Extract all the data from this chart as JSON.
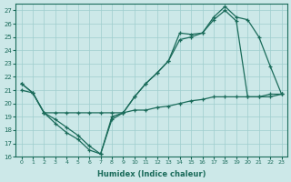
{
  "xlabel": "Humidex (Indice chaleur)",
  "bg_color": "#cce8e8",
  "grid_color": "#9fcece",
  "line_color": "#1a6b5a",
  "xlim": [
    -0.5,
    23.5
  ],
  "ylim": [
    16,
    27.5
  ],
  "xticks": [
    0,
    1,
    2,
    3,
    4,
    5,
    6,
    7,
    8,
    9,
    10,
    11,
    12,
    13,
    14,
    15,
    16,
    17,
    18,
    19,
    20,
    21,
    22,
    23
  ],
  "yticks": [
    16,
    17,
    18,
    19,
    20,
    21,
    22,
    23,
    24,
    25,
    26,
    27
  ],
  "line1_x": [
    0,
    1,
    2,
    3,
    4,
    5,
    6,
    7,
    8,
    9,
    10,
    11,
    12,
    13,
    14,
    15,
    16,
    17,
    18,
    19,
    20,
    21,
    22,
    23
  ],
  "line1_y": [
    21.5,
    20.8,
    19.3,
    18.8,
    18.2,
    17.6,
    16.8,
    16.2,
    19.0,
    19.3,
    20.5,
    21.5,
    22.3,
    23.2,
    25.3,
    25.2,
    25.3,
    26.5,
    27.3,
    26.5,
    26.3,
    25.0,
    22.8,
    20.7
  ],
  "line2_x": [
    0,
    1,
    2,
    3,
    4,
    5,
    6,
    7,
    8,
    9,
    10,
    11,
    12,
    13,
    14,
    15,
    16,
    17,
    18,
    19,
    20,
    21,
    22,
    23
  ],
  "line2_y": [
    21.5,
    20.8,
    19.3,
    18.5,
    17.8,
    17.3,
    16.5,
    16.2,
    18.8,
    19.3,
    20.5,
    21.5,
    22.3,
    23.2,
    24.8,
    25.0,
    25.3,
    26.3,
    27.0,
    26.2,
    20.5,
    20.5,
    20.7,
    20.7
  ],
  "line3_x": [
    0,
    1,
    2,
    3,
    4,
    5,
    6,
    7,
    8,
    9,
    10,
    11,
    12,
    13,
    14,
    15,
    16,
    17,
    18,
    19,
    20,
    21,
    22,
    23
  ],
  "line3_y": [
    21.0,
    20.8,
    19.3,
    19.3,
    19.3,
    19.3,
    19.3,
    19.3,
    19.3,
    19.3,
    19.5,
    19.5,
    19.7,
    19.8,
    20.0,
    20.2,
    20.3,
    20.5,
    20.5,
    20.5,
    20.5,
    20.5,
    20.5,
    20.7
  ]
}
